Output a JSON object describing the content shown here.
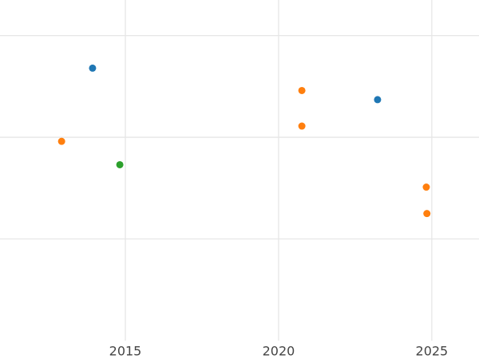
{
  "chart_data": {
    "type": "scatter",
    "series": [
      {
        "color": "#1f77b4",
        "x": [
          2013.93,
          2023.23
        ],
        "values": [
          2.68,
          2.37
        ]
      },
      {
        "color": "#ff7f0e",
        "x": [
          2012.92,
          2020.76,
          2020.76,
          2024.82,
          2024.84
        ],
        "values": [
          1.96,
          2.46,
          2.11,
          1.51,
          1.25
        ]
      },
      {
        "color": "#2ca02c",
        "x": [
          2014.82
        ],
        "values": [
          1.73
        ]
      }
    ],
    "xlim": [
      2010.91,
      2026.54
    ],
    "xticks": [
      2015,
      2020,
      2025
    ],
    "ylim": [
      0,
      3.35
    ],
    "yticks": [
      1,
      2,
      3
    ],
    "grid": true
  }
}
